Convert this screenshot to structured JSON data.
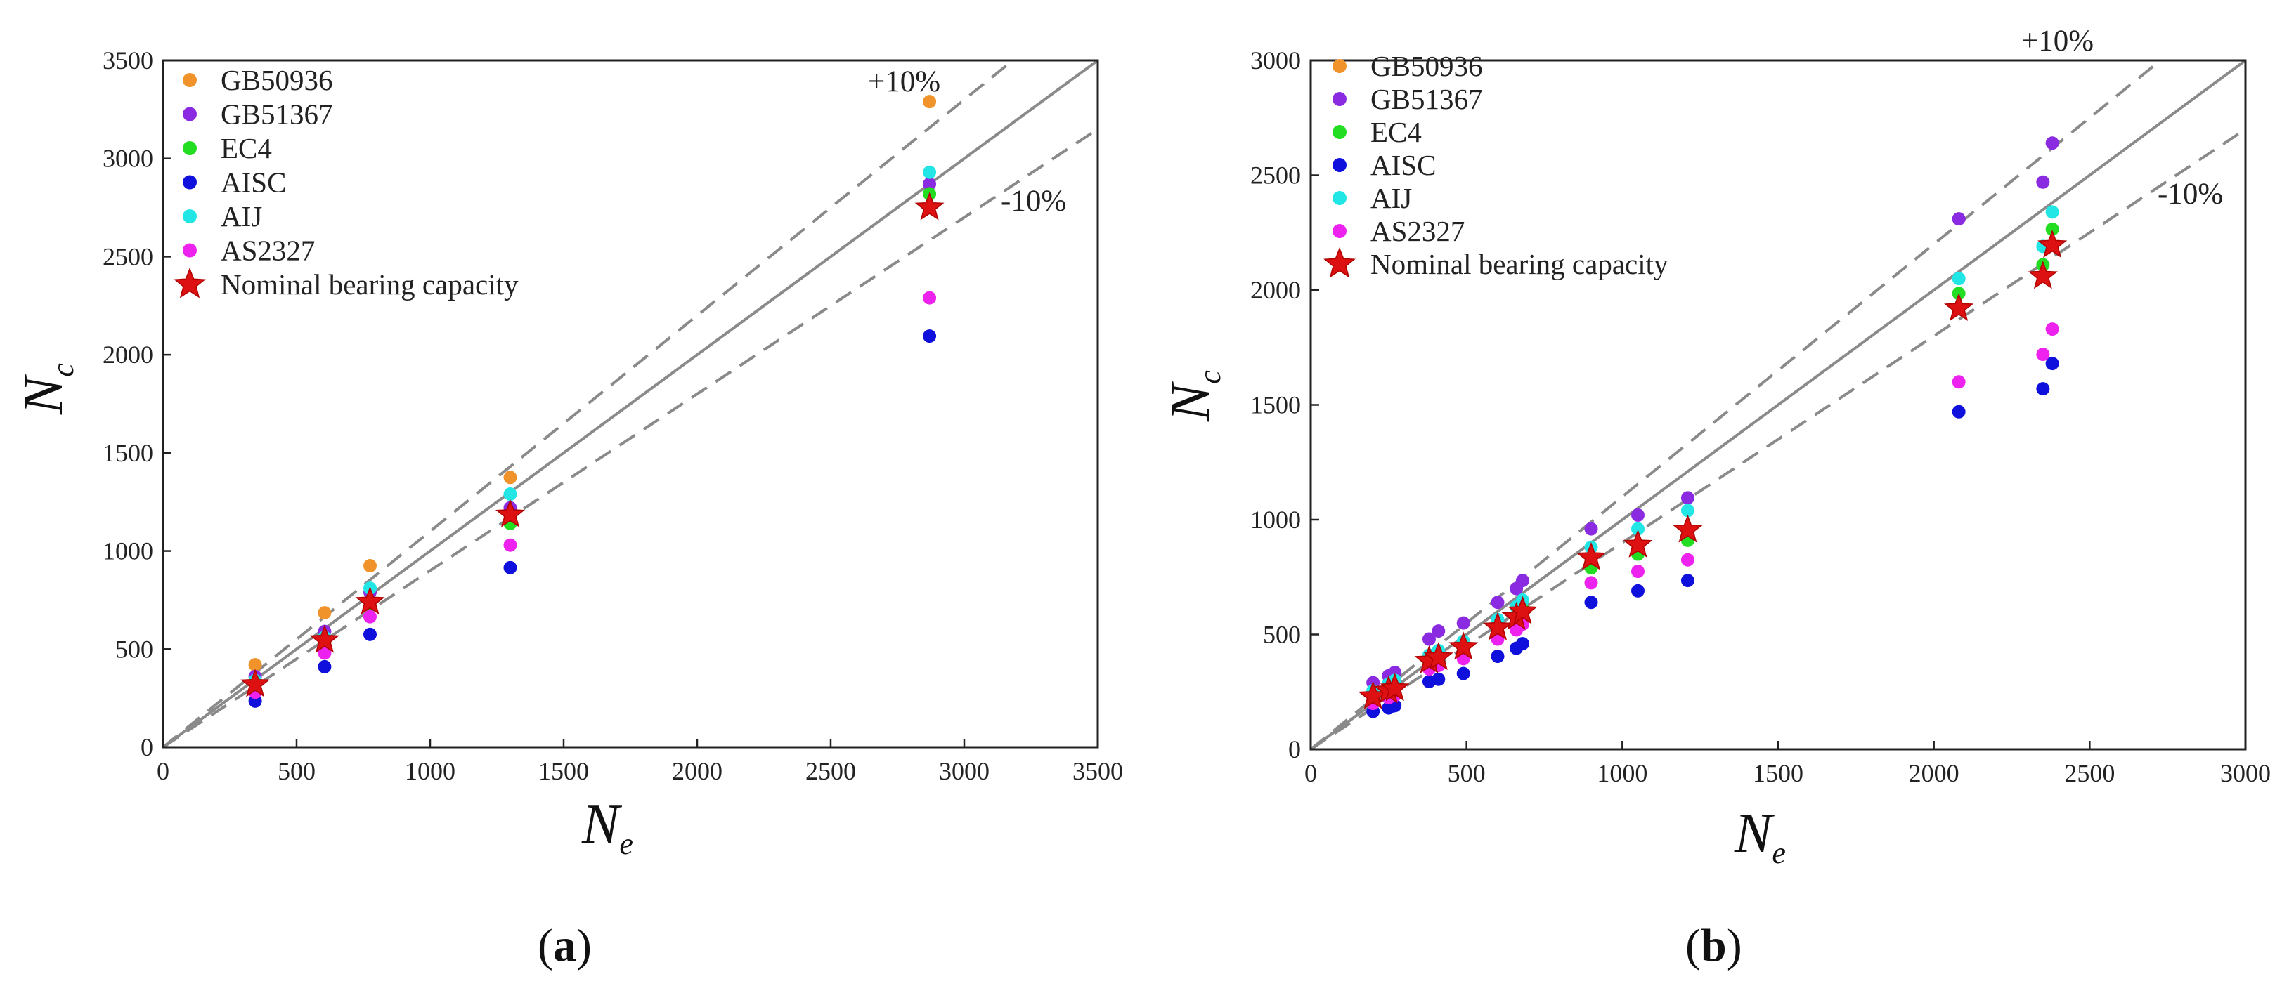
{
  "figure": {
    "panels": [
      {
        "label_open": "(",
        "label_letter": "a",
        "label_close": ")"
      },
      {
        "label_open": "(",
        "label_letter": "b",
        "label_close": ")"
      }
    ]
  },
  "chart_data": [
    {
      "type": "scatter",
      "panel": "a",
      "xlabel": "N",
      "xlabel_sub": "e",
      "ylabel": "N",
      "ylabel_sub": "c",
      "xlim": [
        0,
        3500
      ],
      "ylim": [
        0,
        3500
      ],
      "xticks": [
        0,
        500,
        1000,
        1500,
        2000,
        2500,
        3000,
        3500
      ],
      "yticks": [
        0,
        500,
        1000,
        1500,
        2000,
        2500,
        3000,
        3500
      ],
      "reference_lines": [
        {
          "kind": "solid",
          "slope": 1.0
        },
        {
          "kind": "dashed",
          "slope": 1.1,
          "label": "+10%"
        },
        {
          "kind": "dashed",
          "slope": 0.9,
          "label": "-10%"
        }
      ],
      "legend_position": "top-left",
      "series": [
        {
          "name": "GB50936",
          "color": "#f0932b",
          "marker": "circle",
          "points": [
            [
              345,
              420
            ],
            [
              605,
              685
            ],
            [
              775,
              925
            ],
            [
              1300,
              1375
            ],
            [
              2870,
              3290
            ]
          ]
        },
        {
          "name": "GB51367",
          "color": "#8a2be2",
          "marker": "circle",
          "points": [
            [
              345,
              360
            ],
            [
              605,
              590
            ],
            [
              775,
              790
            ],
            [
              1300,
              1220
            ],
            [
              2870,
              2870
            ]
          ]
        },
        {
          "name": "EC4",
          "color": "#22dd22",
          "marker": "circle",
          "points": [
            [
              345,
              320
            ],
            [
              605,
              540
            ],
            [
              775,
              720
            ],
            [
              1300,
              1140
            ],
            [
              2870,
              2820
            ]
          ]
        },
        {
          "name": "AISC",
          "color": "#1010dd",
          "marker": "circle",
          "points": [
            [
              345,
              235
            ],
            [
              605,
              410
            ],
            [
              775,
              575
            ],
            [
              1300,
              915
            ],
            [
              2870,
              2095
            ]
          ]
        },
        {
          "name": "AIJ",
          "color": "#22e6e6",
          "marker": "circle",
          "points": [
            [
              345,
              340
            ],
            [
              605,
              560
            ],
            [
              775,
              810
            ],
            [
              1300,
              1290
            ],
            [
              2870,
              2930
            ]
          ]
        },
        {
          "name": "AS2327",
          "color": "#ee22ee",
          "marker": "circle",
          "points": [
            [
              345,
              280
            ],
            [
              605,
              480
            ],
            [
              775,
              665
            ],
            [
              1300,
              1030
            ],
            [
              2870,
              2290
            ]
          ]
        },
        {
          "name": "Nominal bearing capacity",
          "color": "#dd1111",
          "marker": "star",
          "points": [
            [
              345,
              320
            ],
            [
              605,
              545
            ],
            [
              775,
              740
            ],
            [
              1300,
              1185
            ],
            [
              2870,
              2750
            ]
          ]
        }
      ]
    },
    {
      "type": "scatter",
      "panel": "b",
      "xlabel": "N",
      "xlabel_sub": "e",
      "ylabel": "N",
      "ylabel_sub": "c",
      "xlim": [
        0,
        3000
      ],
      "ylim": [
        0,
        3000
      ],
      "xticks": [
        0,
        500,
        1000,
        1500,
        2000,
        2500,
        3000
      ],
      "yticks": [
        0,
        500,
        1000,
        1500,
        2000,
        2500,
        3000
      ],
      "reference_lines": [
        {
          "kind": "solid",
          "slope": 1.0
        },
        {
          "kind": "dashed",
          "slope": 1.1,
          "label": "+10%"
        },
        {
          "kind": "dashed",
          "slope": 0.9,
          "label": "-10%"
        }
      ],
      "legend_position": "top-left",
      "series": [
        {
          "name": "GB50936",
          "color": "#f0932b",
          "marker": "circle",
          "points": []
        },
        {
          "name": "GB51367",
          "color": "#8a2be2",
          "marker": "circle",
          "points": [
            [
              200,
              290
            ],
            [
              250,
              320
            ],
            [
              270,
              335
            ],
            [
              380,
              480
            ],
            [
              410,
              515
            ],
            [
              490,
              550
            ],
            [
              600,
              640
            ],
            [
              660,
              700
            ],
            [
              680,
              735
            ],
            [
              900,
              960
            ],
            [
              1050,
              1020
            ],
            [
              1210,
              1095
            ],
            [
              2080,
              2310
            ],
            [
              2350,
              2470
            ],
            [
              2380,
              2640
            ]
          ]
        },
        {
          "name": "EC4",
          "color": "#22dd22",
          "marker": "circle",
          "points": [
            [
              200,
              240
            ],
            [
              250,
              270
            ],
            [
              270,
              280
            ],
            [
              380,
              380
            ],
            [
              410,
              400
            ],
            [
              490,
              440
            ],
            [
              600,
              530
            ],
            [
              660,
              580
            ],
            [
              680,
              610
            ],
            [
              900,
              790
            ],
            [
              1050,
              850
            ],
            [
              1210,
              910
            ],
            [
              2080,
              1985
            ],
            [
              2350,
              2110
            ],
            [
              2380,
              2265
            ]
          ]
        },
        {
          "name": "AISC",
          "color": "#1010dd",
          "marker": "circle",
          "points": [
            [
              200,
              165
            ],
            [
              250,
              180
            ],
            [
              270,
              190
            ],
            [
              380,
              295
            ],
            [
              410,
              305
            ],
            [
              490,
              330
            ],
            [
              600,
              405
            ],
            [
              660,
              440
            ],
            [
              680,
              460
            ],
            [
              900,
              640
            ],
            [
              1050,
              690
            ],
            [
              1210,
              735
            ],
            [
              2080,
              1470
            ],
            [
              2350,
              1570
            ],
            [
              2380,
              1680
            ]
          ]
        },
        {
          "name": "AIJ",
          "color": "#22e6e6",
          "marker": "circle",
          "points": [
            [
              200,
              255
            ],
            [
              250,
              285
            ],
            [
              270,
              300
            ],
            [
              380,
              410
            ],
            [
              410,
              430
            ],
            [
              490,
              470
            ],
            [
              600,
              565
            ],
            [
              660,
              620
            ],
            [
              680,
              650
            ],
            [
              900,
              880
            ],
            [
              1050,
              960
            ],
            [
              1210,
              1040
            ],
            [
              2080,
              2050
            ],
            [
              2350,
              2190
            ],
            [
              2380,
              2340
            ]
          ]
        },
        {
          "name": "AS2327",
          "color": "#ee22ee",
          "marker": "circle",
          "points": [
            [
              200,
              200
            ],
            [
              250,
              225
            ],
            [
              270,
              235
            ],
            [
              380,
              350
            ],
            [
              410,
              365
            ],
            [
              490,
              395
            ],
            [
              600,
              480
            ],
            [
              660,
              520
            ],
            [
              680,
              545
            ],
            [
              900,
              725
            ],
            [
              1050,
              775
            ],
            [
              1210,
              825
            ],
            [
              2080,
              1600
            ],
            [
              2350,
              1720
            ],
            [
              2380,
              1830
            ]
          ]
        },
        {
          "name": "Nominal bearing capacity",
          "color": "#dd1111",
          "marker": "star",
          "points": [
            [
              200,
              230
            ],
            [
              250,
              255
            ],
            [
              270,
              265
            ],
            [
              380,
              385
            ],
            [
              410,
              400
            ],
            [
              490,
              445
            ],
            [
              600,
              530
            ],
            [
              660,
              575
            ],
            [
              680,
              600
            ],
            [
              900,
              835
            ],
            [
              1050,
              890
            ],
            [
              1210,
              955
            ],
            [
              2080,
              1920
            ],
            [
              2350,
              2060
            ],
            [
              2380,
              2195
            ]
          ]
        }
      ]
    }
  ]
}
